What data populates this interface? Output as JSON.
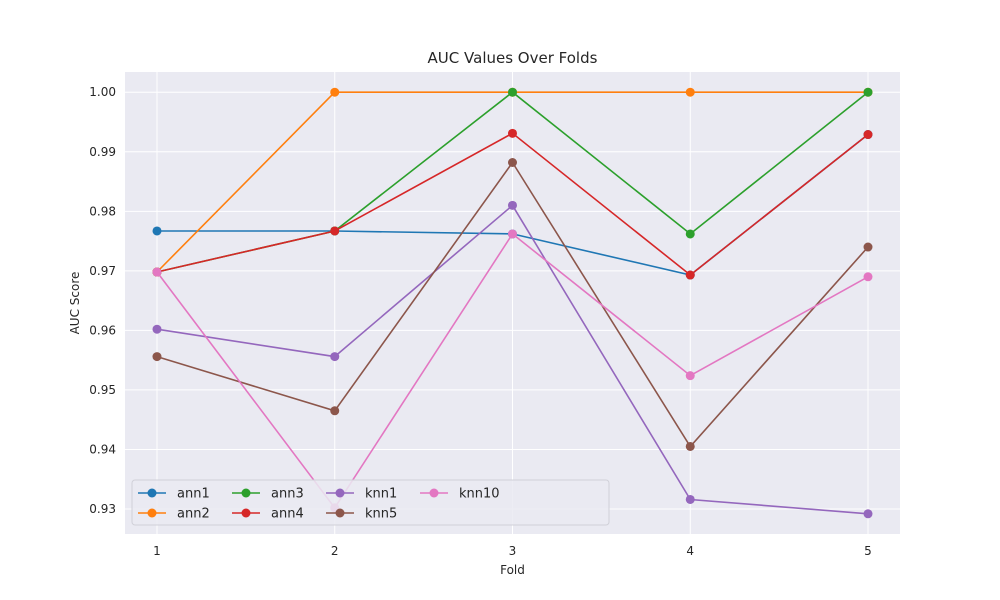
{
  "chart_data": {
    "type": "line",
    "title": "AUC Values Over Folds",
    "xlabel": "Fold",
    "ylabel": "AUC Score",
    "x": [
      1,
      2,
      3,
      4,
      5
    ],
    "xlim": [
      0.82,
      5.18
    ],
    "ylim": [
      0.9258,
      1.0034
    ],
    "yticks": [
      0.93,
      0.94,
      0.95,
      0.96,
      0.97,
      0.98,
      0.99,
      1.0
    ],
    "ytick_labels": [
      "0.93",
      "0.94",
      "0.95",
      "0.96",
      "0.97",
      "0.98",
      "0.99",
      "1.00"
    ],
    "xtick_labels": [
      "1",
      "2",
      "3",
      "4",
      "5"
    ],
    "grid": true,
    "legend_position": "lower-left",
    "legend_columns": 5,
    "series": [
      {
        "name": "ann1",
        "color": "#1f77b4",
        "values": [
          0.9767,
          0.9767,
          0.9762,
          0.9693,
          0.9929
        ]
      },
      {
        "name": "ann2",
        "color": "#ff7f0e",
        "values": [
          0.9698,
          1.0,
          1.0,
          1.0,
          1.0
        ]
      },
      {
        "name": "ann3",
        "color": "#2ca02c",
        "values": [
          0.9698,
          0.9767,
          1.0,
          0.9762,
          1.0
        ]
      },
      {
        "name": "ann4",
        "color": "#d62728",
        "values": [
          0.9698,
          0.9767,
          0.9931,
          0.9693,
          0.9929
        ]
      },
      {
        "name": "knn1",
        "color": "#9467bd",
        "values": [
          0.9602,
          0.9556,
          0.981,
          0.9316,
          0.9292
        ]
      },
      {
        "name": "knn5",
        "color": "#8c564b",
        "values": [
          0.9556,
          0.9465,
          0.9882,
          0.9405,
          0.974
        ]
      },
      {
        "name": "knn10",
        "color": "#e377c2",
        "values": [
          0.9698,
          0.9302,
          0.9762,
          0.9524,
          0.969
        ]
      }
    ]
  }
}
